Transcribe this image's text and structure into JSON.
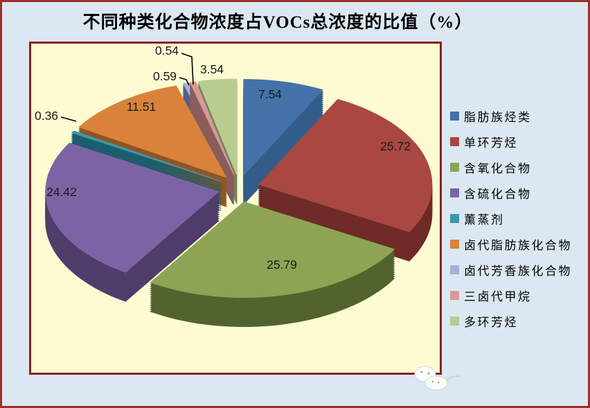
{
  "title": "不同种类化合物浓度占VOCs总浓度的比值（%）",
  "chart_data": {
    "type": "pie",
    "style": "3d-exploded",
    "title": "不同种类化合物浓度占VOCs总浓度的比值（%）",
    "unit": "%",
    "total": 100,
    "legend_position": "right",
    "data_labels": "value",
    "slices": [
      {
        "label": "脂肪族烃类",
        "value": 7.54,
        "color": "#4472A8",
        "side_color": "#335C8A"
      },
      {
        "label": "单环芳烃",
        "value": 25.72,
        "color": "#A94743",
        "side_color": "#6E2B28"
      },
      {
        "label": "含氧化合物",
        "value": 25.79,
        "color": "#8DA454",
        "side_color": "#52632E"
      },
      {
        "label": "含硫化合物",
        "value": 24.42,
        "color": "#7C64A4",
        "side_color": "#4F3D6B"
      },
      {
        "label": "薰蒸剂",
        "value": 0.36,
        "color": "#3E97AD",
        "side_color": "#1C5D6D"
      },
      {
        "label": "卤代脂肪族化合物",
        "value": 11.51,
        "color": "#D9823B",
        "side_color": "#8F5523"
      },
      {
        "label": "卤代芳香族化合物",
        "value": 0.59,
        "color": "#A3B1D8",
        "side_color": "#535F85"
      },
      {
        "label": "三卤代甲烷",
        "value": 0.54,
        "color": "#D69997",
        "side_color": "#8A5C5B"
      },
      {
        "label": "多环芳烃",
        "value": 3.54,
        "color": "#BACB92",
        "side_color": "#76855A"
      }
    ]
  },
  "colors": {
    "page_background": "#DBE8F1",
    "page_border": "#A12F2B",
    "plot_background": "#FCFBD2",
    "plot_border": "#8A1F1F",
    "title_text": "#000000",
    "label_text": "#1B1B1B",
    "leader_line": "#000000"
  },
  "decor": {
    "watermark_icon": "cloud-mascot-icon"
  }
}
